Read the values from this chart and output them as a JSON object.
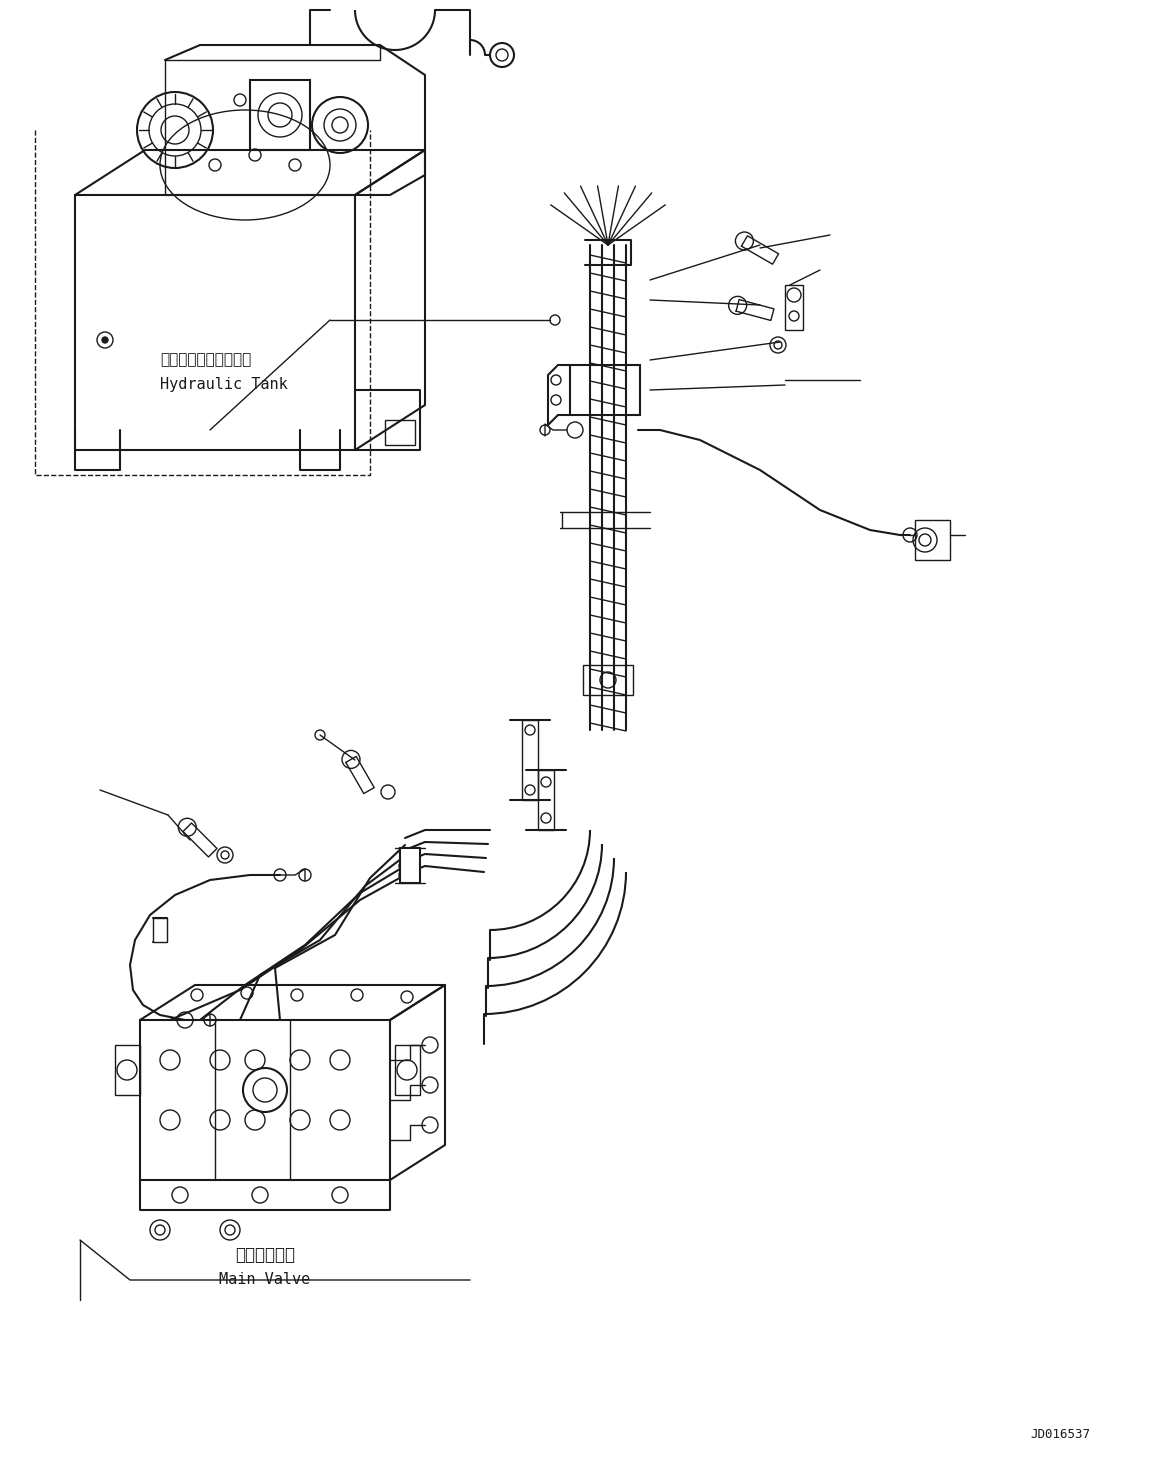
{
  "background_color": "#ffffff",
  "line_color": "#1a1a1a",
  "text_color": "#1a1a1a",
  "diagram_id": "JD016537",
  "label_hydraulic_tank_jp": "ハイドロリックタンク",
  "label_hydraulic_tank_en": "Hydraulic Tank",
  "label_main_valve_jp": "メインバルブ",
  "label_main_valve_en": "Main Valve",
  "figsize": [
    11.63,
    14.6
  ],
  "dpi": 100
}
